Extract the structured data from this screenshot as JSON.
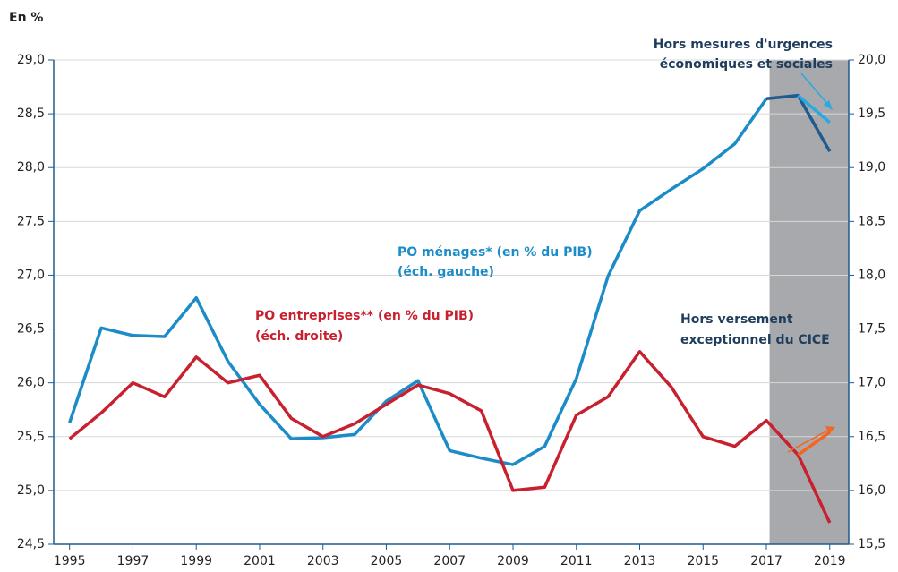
{
  "chart_data": {
    "type": "line",
    "y_label": "En %",
    "x": [
      1995,
      1996,
      1997,
      1998,
      1999,
      2000,
      2001,
      2002,
      2003,
      2004,
      2005,
      2006,
      2007,
      2008,
      2009,
      2010,
      2011,
      2012,
      2013,
      2014,
      2015,
      2016,
      2017,
      2018,
      2019
    ],
    "xlim": [
      1994.5,
      2019.6
    ],
    "xticks": [
      1995,
      1997,
      1999,
      2001,
      2003,
      2005,
      2007,
      2009,
      2011,
      2013,
      2015,
      2017,
      2019
    ],
    "ylim": [
      24.5,
      29.0
    ],
    "yticks": [
      {
        "value": 24.5,
        "label": "24,5"
      },
      {
        "value": 25.0,
        "label": "25,0"
      },
      {
        "value": 25.5,
        "label": "25,5"
      },
      {
        "value": 26.0,
        "label": "26,0"
      },
      {
        "value": 26.5,
        "label": "26,5"
      },
      {
        "value": 27.0,
        "label": "27,0"
      },
      {
        "value": 27.5,
        "label": "27,5"
      },
      {
        "value": 28.0,
        "label": "28,0"
      },
      {
        "value": 28.5,
        "label": "28,5"
      },
      {
        "value": 29.0,
        "label": "29,0"
      }
    ],
    "y2lim": [
      15.5,
      20.0
    ],
    "y2ticks": [
      {
        "value": 15.5,
        "label": "15,5"
      },
      {
        "value": 16.0,
        "label": "16,0"
      },
      {
        "value": 16.5,
        "label": "16,5"
      },
      {
        "value": 17.0,
        "label": "17,0"
      },
      {
        "value": 17.5,
        "label": "17,5"
      },
      {
        "value": 18.0,
        "label": "18,0"
      },
      {
        "value": 18.5,
        "label": "18,5"
      },
      {
        "value": 19.0,
        "label": "19,0"
      },
      {
        "value": 19.5,
        "label": "19,5"
      },
      {
        "value": 20.0,
        "label": "20,0"
      }
    ],
    "grid": true,
    "shaded_xrange": [
      2017.1,
      2019.6
    ],
    "shade_color": "#a7a9ac",
    "series": [
      {
        "name": "PO ménages* (en % du PIB)",
        "note": "(éch. gauche)",
        "color": "#1b8cc8",
        "shaded_color": "#1f5b8e",
        "values": [
          25.63,
          26.51,
          26.44,
          26.43,
          26.79,
          26.2,
          25.8,
          25.48,
          25.49,
          25.52,
          25.83,
          26.02,
          25.37,
          25.3,
          25.24,
          25.41,
          26.04,
          26.99,
          27.6,
          27.8,
          27.99,
          28.22,
          28.64,
          28.67,
          28.15
        ]
      },
      {
        "name": "PO entreprises** (en % du PIB)",
        "note": "(éch. droite)",
        "color": "#c8202f",
        "axis": "y2",
        "values": [
          16.48,
          16.72,
          17.0,
          16.87,
          17.24,
          17.0,
          17.07,
          16.67,
          16.5,
          16.62,
          16.8,
          16.98,
          16.9,
          16.74,
          16.0,
          16.03,
          16.7,
          16.87,
          17.29,
          16.96,
          16.5,
          16.41,
          16.65,
          16.33,
          15.7
        ]
      },
      {
        "name_lines": [
          "Hors mesures d'urgences",
          "économiques et sociales"
        ],
        "color": "#27a9e1",
        "values": [
          null,
          null,
          null,
          null,
          null,
          null,
          null,
          null,
          null,
          null,
          null,
          null,
          null,
          null,
          null,
          null,
          null,
          null,
          null,
          null,
          null,
          null,
          null,
          28.67,
          28.42
        ]
      },
      {
        "name_lines": [
          "Hors versement",
          "exceptionnel du CICE"
        ],
        "color": "#f26522",
        "axis": "y2",
        "values": [
          null,
          null,
          null,
          null,
          null,
          null,
          null,
          null,
          null,
          null,
          null,
          null,
          null,
          null,
          null,
          null,
          null,
          null,
          null,
          null,
          null,
          null,
          null,
          16.33,
          16.54
        ]
      }
    ]
  }
}
